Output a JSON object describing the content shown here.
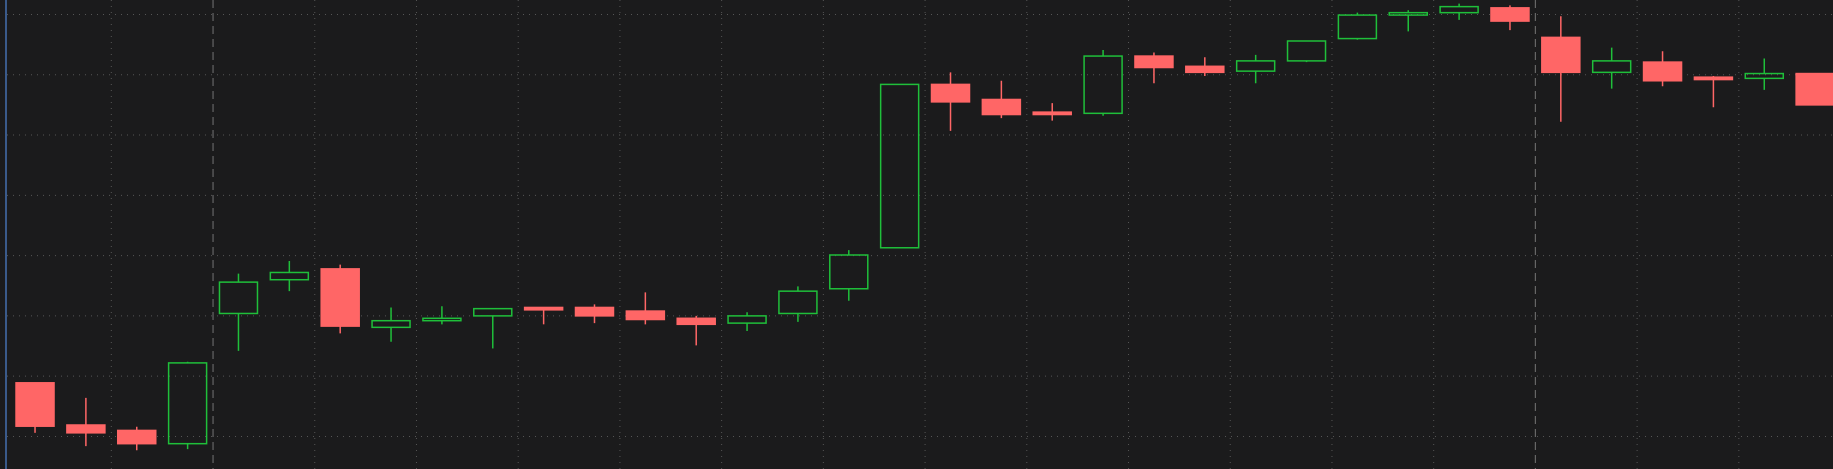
{
  "chart_data": {
    "type": "candlestick",
    "categories": [
      null,
      null,
      null,
      null,
      null,
      null,
      null,
      null,
      null,
      null,
      null,
      null,
      null,
      null,
      null,
      null,
      null,
      null,
      null,
      null,
      null,
      null,
      null,
      null,
      null,
      null,
      null,
      null,
      null,
      null,
      null,
      null,
      null,
      null,
      null,
      null
    ],
    "open": [
      1.89,
      1.19,
      1.1,
      0.88,
      3.04,
      3.6,
      3.78,
      2.81,
      2.92,
      3.0,
      3.14,
      3.14,
      3.08,
      2.96,
      2.88,
      3.04,
      3.45,
      4.13,
      6.84,
      6.59,
      6.38,
      6.36,
      7.31,
      7.14,
      7.06,
      7.23,
      7.6,
      7.99,
      8.03,
      8.11,
      7.62,
      7.04,
      7.21,
      6.96,
      6.94,
      7.02
    ],
    "high": [
      1.89,
      1.64,
      1.16,
      2.24,
      3.7,
      3.91,
      3.85,
      3.14,
      3.16,
      3.12,
      3.14,
      3.19,
      3.39,
      3.0,
      3.06,
      3.49,
      4.09,
      6.84,
      7.04,
      6.9,
      6.53,
      7.41,
      7.37,
      7.29,
      7.33,
      7.56,
      8.03,
      8.07,
      8.18,
      8.15,
      7.97,
      7.45,
      7.39,
      6.98,
      7.27,
      7.02
    ],
    "low": [
      1.06,
      0.84,
      0.77,
      0.79,
      2.42,
      3.41,
      2.71,
      2.57,
      2.86,
      2.46,
      2.86,
      2.88,
      2.86,
      2.51,
      2.75,
      2.9,
      3.25,
      4.13,
      6.07,
      6.28,
      6.24,
      6.32,
      6.86,
      6.98,
      6.86,
      7.21,
      7.58,
      7.72,
      7.91,
      7.74,
      6.22,
      6.77,
      6.81,
      6.46,
      6.75,
      6.5
    ],
    "close": [
      1.17,
      1.06,
      0.88,
      2.22,
      3.56,
      3.72,
      2.83,
      2.92,
      2.96,
      3.12,
      3.1,
      3.0,
      2.94,
      2.86,
      3.0,
      3.41,
      4.01,
      6.84,
      6.55,
      6.34,
      6.34,
      7.31,
      7.12,
      7.04,
      7.23,
      7.56,
      7.99,
      8.03,
      8.13,
      7.89,
      7.04,
      7.23,
      6.9,
      6.92,
      7.02,
      6.5
    ],
    "up_color": "#1fbf3a",
    "down_color": "#ff6666",
    "ylim": [
      0.46,
      8.24
    ],
    "yticks": [
      1,
      2,
      3,
      4,
      5,
      6,
      7,
      8
    ],
    "grid": true
  }
}
